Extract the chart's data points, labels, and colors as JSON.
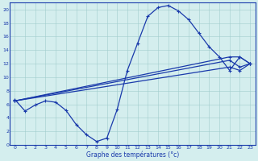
{
  "xlabel": "Graphe des températures (°c)",
  "background_color": "#d4eeee",
  "line_color": "#1a3aab",
  "xlim": [
    -0.5,
    23.5
  ],
  "ylim": [
    0,
    21
  ],
  "xticks": [
    0,
    1,
    2,
    3,
    4,
    5,
    6,
    7,
    8,
    9,
    10,
    11,
    12,
    13,
    14,
    15,
    16,
    17,
    18,
    19,
    20,
    21,
    22,
    23
  ],
  "yticks": [
    0,
    2,
    4,
    6,
    8,
    10,
    12,
    14,
    16,
    18,
    20
  ],
  "line1_x": [
    0,
    1,
    2,
    3,
    4,
    5,
    6,
    7,
    8,
    9,
    10,
    11,
    12,
    13,
    14,
    15,
    16,
    17,
    18,
    19,
    20,
    21,
    22,
    23
  ],
  "line1_y": [
    6.7,
    5.0,
    5.9,
    6.5,
    6.3,
    5.1,
    3.0,
    1.5,
    0.5,
    1.0,
    5.2,
    11.0,
    15.0,
    19.0,
    20.3,
    20.6,
    19.8,
    18.5,
    16.5,
    14.5,
    13.0,
    11.0,
    13.0,
    12.0
  ],
  "line2_x": [
    0,
    21,
    22,
    23
  ],
  "line2_y": [
    6.5,
    13.0,
    13.0,
    12.0
  ],
  "line3_x": [
    0,
    21,
    22,
    23
  ],
  "line3_y": [
    6.5,
    12.5,
    11.5,
    12.0
  ],
  "line4_x": [
    0,
    21,
    22,
    23
  ],
  "line4_y": [
    6.5,
    11.5,
    11.0,
    12.0
  ],
  "marker": "+",
  "markersize": 3,
  "linewidth": 0.9,
  "tick_fontsize": 4.5,
  "xlabel_fontsize": 5.5
}
